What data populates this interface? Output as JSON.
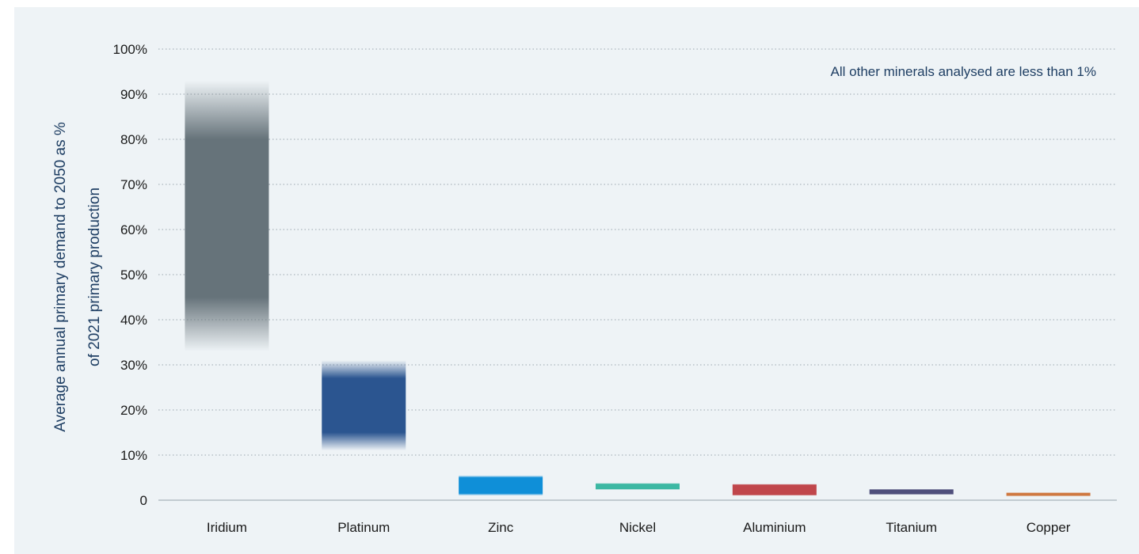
{
  "chart_data": {
    "type": "bar",
    "subtype": "floating-range",
    "categories": [
      "Iridium",
      "Platinum",
      "Zinc",
      "Nickel",
      "Aluminium",
      "Titanium",
      "Copper"
    ],
    "ranges": [
      {
        "low": 33,
        "high": 93,
        "core_low": 45,
        "core_high": 80
      },
      {
        "low": 11,
        "high": 31,
        "core_low": 15,
        "core_high": 27
      },
      {
        "low": 1,
        "high": 5.5,
        "core_low": 1.5,
        "core_high": 5
      },
      {
        "low": 2.3,
        "high": 3.8,
        "core_low": 2.5,
        "core_high": 3.6
      },
      {
        "low": 1,
        "high": 3.6,
        "core_low": 1.2,
        "core_high": 3.4
      },
      {
        "low": 1.2,
        "high": 2.5,
        "core_low": 1.4,
        "core_high": 2.3
      },
      {
        "low": 0.9,
        "high": 1.7,
        "core_low": 1.0,
        "core_high": 1.6
      }
    ],
    "colors": [
      "#66737a",
      "#2b5590",
      "#0f8fd8",
      "#3cb8a3",
      "#c0464b",
      "#4f4f7c",
      "#cf7840"
    ],
    "ylabel_lines": [
      "Average annual primary demand to 2050 as %",
      "of 2021 primary production"
    ],
    "xlabel": "",
    "ylim": [
      0,
      100
    ],
    "yticks": [
      0,
      10,
      20,
      30,
      40,
      50,
      60,
      70,
      80,
      90,
      100
    ],
    "ytick_labels": [
      "0",
      "10%",
      "20%",
      "30%",
      "40%",
      "50%",
      "60%",
      "70%",
      "80%",
      "90%",
      "100%"
    ],
    "annotation": "All other minerals analysed are less than 1%",
    "grid": true
  }
}
